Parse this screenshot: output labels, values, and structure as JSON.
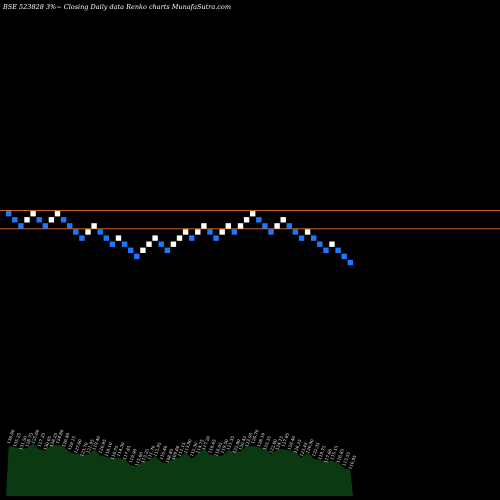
{
  "header": {
    "text": "BSE 523828  3%~  Closing Daily data  Renko  charts MunafaSutra.com"
  },
  "chart_data": {
    "type": "renko",
    "box_step_label": "3%",
    "reference_lines": {
      "color": "#c8641e",
      "values": [
        10,
        7
      ]
    },
    "bricks": [
      {
        "level": 10,
        "dir": "down"
      },
      {
        "level": 9,
        "dir": "down"
      },
      {
        "level": 8,
        "dir": "down"
      },
      {
        "level": 9,
        "dir": "up"
      },
      {
        "level": 10,
        "dir": "up"
      },
      {
        "level": 9,
        "dir": "down"
      },
      {
        "level": 8,
        "dir": "down"
      },
      {
        "level": 9,
        "dir": "up"
      },
      {
        "level": 10,
        "dir": "up"
      },
      {
        "level": 9,
        "dir": "down"
      },
      {
        "level": 8,
        "dir": "down"
      },
      {
        "level": 7,
        "dir": "down"
      },
      {
        "level": 6,
        "dir": "down"
      },
      {
        "level": 7,
        "dir": "up"
      },
      {
        "level": 8,
        "dir": "up"
      },
      {
        "level": 7,
        "dir": "down"
      },
      {
        "level": 6,
        "dir": "down"
      },
      {
        "level": 5,
        "dir": "down"
      },
      {
        "level": 6,
        "dir": "up"
      },
      {
        "level": 5,
        "dir": "down"
      },
      {
        "level": 4,
        "dir": "down"
      },
      {
        "level": 3,
        "dir": "down"
      },
      {
        "level": 4,
        "dir": "up"
      },
      {
        "level": 5,
        "dir": "up"
      },
      {
        "level": 6,
        "dir": "up"
      },
      {
        "level": 5,
        "dir": "down"
      },
      {
        "level": 4,
        "dir": "down"
      },
      {
        "level": 5,
        "dir": "up"
      },
      {
        "level": 6,
        "dir": "up"
      },
      {
        "level": 7,
        "dir": "up"
      },
      {
        "level": 6,
        "dir": "down"
      },
      {
        "level": 7,
        "dir": "up"
      },
      {
        "level": 8,
        "dir": "up"
      },
      {
        "level": 7,
        "dir": "down"
      },
      {
        "level": 6,
        "dir": "down"
      },
      {
        "level": 7,
        "dir": "up"
      },
      {
        "level": 8,
        "dir": "up"
      },
      {
        "level": 7,
        "dir": "down"
      },
      {
        "level": 8,
        "dir": "up"
      },
      {
        "level": 9,
        "dir": "up"
      },
      {
        "level": 10,
        "dir": "up"
      },
      {
        "level": 9,
        "dir": "down"
      },
      {
        "level": 8,
        "dir": "down"
      },
      {
        "level": 7,
        "dir": "down"
      },
      {
        "level": 8,
        "dir": "up"
      },
      {
        "level": 9,
        "dir": "up"
      },
      {
        "level": 8,
        "dir": "down"
      },
      {
        "level": 7,
        "dir": "down"
      },
      {
        "level": 6,
        "dir": "down"
      },
      {
        "level": 7,
        "dir": "up"
      },
      {
        "level": 6,
        "dir": "down"
      },
      {
        "level": 5,
        "dir": "down"
      },
      {
        "level": 4,
        "dir": "down"
      },
      {
        "level": 5,
        "dir": "up"
      },
      {
        "level": 4,
        "dir": "down"
      },
      {
        "level": 3,
        "dir": "down"
      },
      {
        "level": 2,
        "dir": "down"
      }
    ],
    "colors": {
      "up": "#ffffff",
      "down": "#1e78ff",
      "volume": "#0b3a12",
      "background": "#000000"
    },
    "price_labels": [
      "136.90",
      "135.25",
      "131.50",
      "128.75",
      "125.60",
      "127.35",
      "130.05",
      "128.25",
      "124.80",
      "126.40",
      "129.15",
      "127.60",
      "123.70",
      "121.95",
      "119.40",
      "120.85",
      "118.10",
      "116.75",
      "114.30",
      "117.45",
      "119.90",
      "115.60",
      "113.25",
      "111.70",
      "112.95",
      "110.40",
      "108.85",
      "109.60",
      "111.15",
      "113.80",
      "112.30",
      "114.75",
      "117.20",
      "118.65",
      "116.05",
      "119.50",
      "121.35",
      "122.80",
      "120.45",
      "123.95",
      "126.70",
      "128.10",
      "125.35",
      "122.60",
      "124.15",
      "127.85",
      "129.40",
      "126.25",
      "123.45",
      "120.90",
      "122.35",
      "119.75",
      "117.60",
      "115.15",
      "116.85",
      "113.55",
      "110.95"
    ]
  }
}
